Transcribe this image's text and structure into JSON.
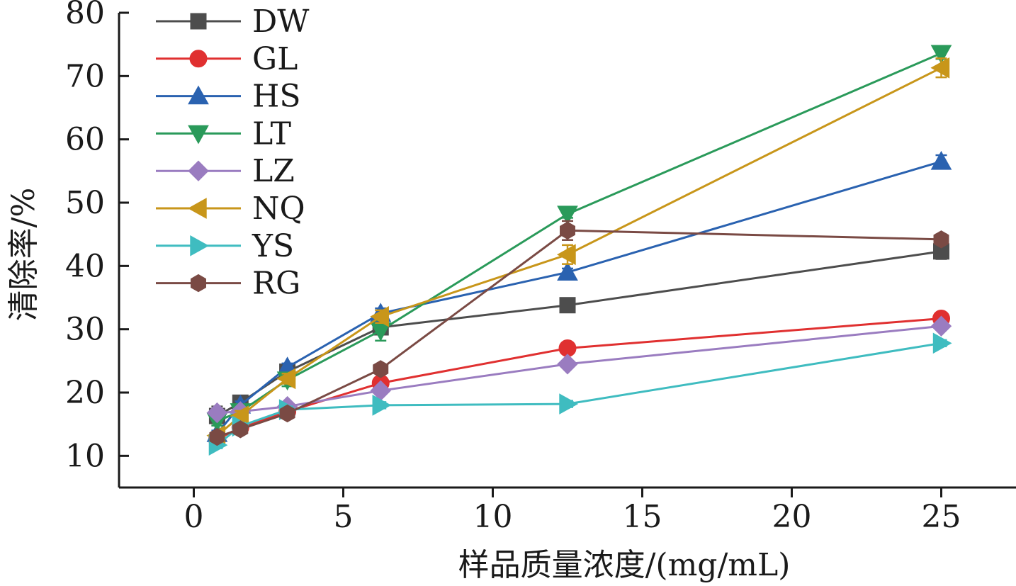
{
  "chart_data": {
    "type": "line",
    "title": "",
    "xlabel": "样品质量浓度/(mg/mL)",
    "ylabel": "清除率/%",
    "xlim": [
      -2.5,
      27.5
    ],
    "ylim": [
      5,
      80
    ],
    "xticks": [
      0,
      5,
      10,
      15,
      20,
      25
    ],
    "yticks": [
      10,
      20,
      30,
      40,
      50,
      60,
      70,
      80
    ],
    "x": [
      0.78,
      1.56,
      3.13,
      6.25,
      12.5,
      25
    ],
    "legend_position": "top-left",
    "grid": false,
    "series": [
      {
        "name": "DW",
        "color": "#4d4d4d",
        "marker": "square",
        "values": [
          16.3,
          18.4,
          23.3,
          30.3,
          33.8,
          42.3
        ],
        "errors": [
          1.5,
          0.7,
          0.6,
          0.8,
          0.5,
          1.2
        ]
      },
      {
        "name": "GL",
        "color": "#e03030",
        "marker": "circle",
        "values": [
          12.6,
          14.5,
          17.0,
          21.5,
          27.0,
          31.7
        ],
        "errors": [
          0.5,
          0.6,
          0.5,
          0.6,
          0.5,
          0.6
        ]
      },
      {
        "name": "HS",
        "color": "#2a62b0",
        "marker": "triangle-up",
        "values": [
          13.5,
          18.0,
          24.0,
          32.5,
          39.0,
          56.5
        ],
        "errors": [
          0.5,
          0.6,
          0.6,
          0.8,
          0.6,
          1.0
        ]
      },
      {
        "name": "LT",
        "color": "#2a9a5a",
        "marker": "triangle-down",
        "values": [
          15.5,
          17.0,
          22.0,
          29.8,
          48.2,
          73.6
        ],
        "errors": [
          0.7,
          0.6,
          1.0,
          1.6,
          0.6,
          0.9
        ]
      },
      {
        "name": "LZ",
        "color": "#9a7cc0",
        "marker": "diamond",
        "values": [
          16.8,
          17.0,
          17.8,
          20.3,
          24.5,
          30.5
        ],
        "errors": [
          0.5,
          0.5,
          0.6,
          0.6,
          0.6,
          0.6
        ]
      },
      {
        "name": "NQ",
        "color": "#c8961a",
        "marker": "triangle-left",
        "values": [
          13.2,
          16.3,
          22.2,
          32.0,
          41.8,
          71.3
        ],
        "errors": [
          0.5,
          0.8,
          0.8,
          1.0,
          1.5,
          1.5
        ]
      },
      {
        "name": "YS",
        "color": "#3fbcc0",
        "marker": "triangle-right",
        "values": [
          11.7,
          14.7,
          17.3,
          18.0,
          18.2,
          27.8
        ],
        "errors": [
          0.5,
          0.5,
          0.5,
          0.5,
          0.5,
          0.5
        ]
      },
      {
        "name": "RG",
        "color": "#7a4a44",
        "marker": "hexagon",
        "values": [
          13.0,
          14.2,
          16.7,
          23.7,
          45.6,
          44.2
        ],
        "errors": [
          0.6,
          0.5,
          0.6,
          0.6,
          1.5,
          0.8
        ]
      }
    ]
  }
}
